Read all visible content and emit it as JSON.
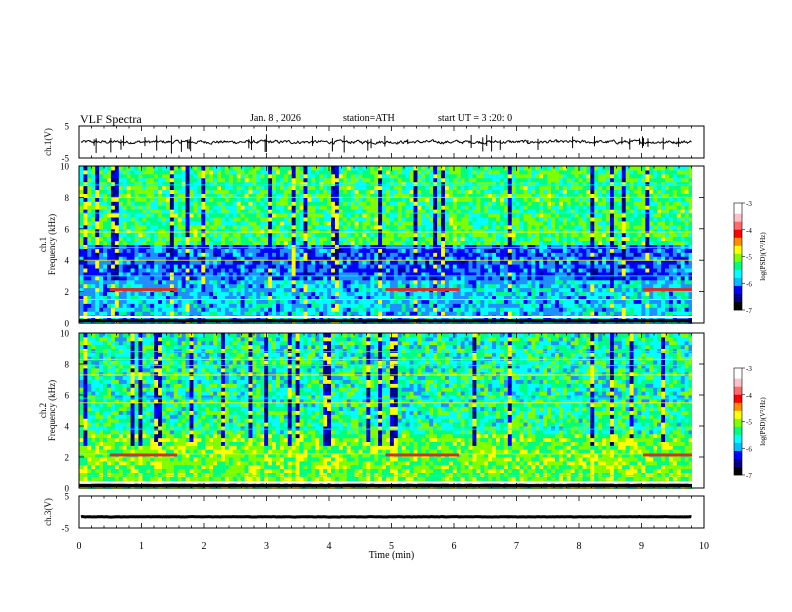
{
  "header": {
    "title": "VLF Spectra",
    "date": "Jan. 8 , 2026",
    "station": "station=ATH",
    "start_ut": "start UT = 3 :20: 0"
  },
  "colors": {
    "colormap": [
      "#000000",
      "#00008b",
      "#0000ff",
      "#00bfff",
      "#00ffff",
      "#00ff7f",
      "#7fff00",
      "#ffff00",
      "#ff8c00",
      "#ff0000",
      "#ffc0cb",
      "#ffffff"
    ]
  },
  "chart_data": [
    {
      "type": "line",
      "ylabel": "ch.1(V)",
      "ylim": [
        -5,
        5
      ],
      "yticks": [
        "5",
        "-5"
      ],
      "description_values": {
        "baseline": 0,
        "amplitude": 0.8
      }
    },
    {
      "type": "heatmap",
      "ylabel": "ch.1\nFrequency (kHz)",
      "ylabel_lines": [
        "ch.1",
        "Frequency (kHz)"
      ],
      "ylim": [
        0,
        10
      ],
      "yticks": [
        "0",
        "2",
        "4",
        "6",
        "8",
        "10"
      ],
      "colorbar": {
        "label": "log(PSD)(V²/Hz)",
        "ticks": [
          "-3",
          "-4",
          "-5",
          "-6",
          "-7"
        ],
        "range": [
          -7,
          -3
        ]
      }
    },
    {
      "type": "heatmap",
      "ylabel": "ch.2\nFrequency (kHz)",
      "ylabel_lines": [
        "ch.2",
        "Frequency (kHz)"
      ],
      "ylim": [
        0,
        10
      ],
      "yticks": [
        "0",
        "2",
        "4",
        "6",
        "8",
        "10"
      ],
      "colorbar": {
        "label": "log(PSD)(V²/Hz)",
        "ticks": [
          "-3",
          "-4",
          "-5",
          "-6",
          "-7"
        ],
        "range": [
          -7,
          -3
        ]
      }
    },
    {
      "type": "line",
      "ylabel": "ch.3(V)",
      "ylim": [
        -5,
        5
      ],
      "yticks": [
        "5",
        "-5"
      ],
      "description_values": {
        "baseline": -1.5,
        "amplitude": 0.1
      }
    }
  ],
  "xaxis": {
    "label": "Time (min)",
    "range": [
      0,
      10
    ],
    "ticks": [
      "0",
      "1",
      "2",
      "3",
      "4",
      "5",
      "6",
      "7",
      "8",
      "9",
      "10"
    ]
  }
}
